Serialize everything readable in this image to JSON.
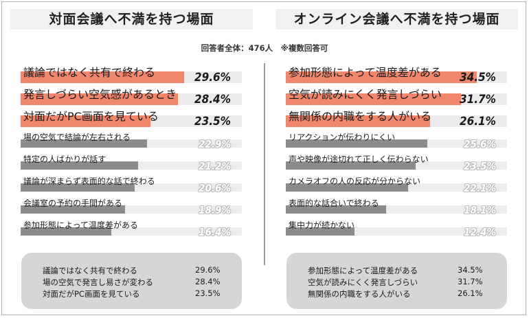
{
  "respondents": "回答者全体：476人　※複数回答可",
  "colors": {
    "highlight": "#f0866b",
    "normal": "#8c8c8c",
    "track": "#ececec",
    "summary_bg": "#d6d6d6"
  },
  "chart_data": [
    {
      "type": "bar",
      "orientation": "horizontal",
      "title": "対面会議へ不満を持つ場面",
      "categories": [
        "議論ではなく共有で終わる",
        "発言しづらい空気感があるとき",
        "対面だがPC画面を見ている",
        "場の空気で結論が左右される",
        "特定の人ばかりが話す",
        "議論が深まらず表面的な話で終わる",
        "会議室の予約の手間がある",
        "参加形態によって温度差がある"
      ],
      "values": [
        29.6,
        28.4,
        23.5,
        22.9,
        21.2,
        20.6,
        18.9,
        16.4
      ],
      "value_labels": [
        "29.6%",
        "28.4%",
        "23.5%",
        "22.9%",
        "21.2%",
        "20.6%",
        "18.9%",
        "16.4%"
      ],
      "highlight_top": 3,
      "xlim": [
        0,
        40
      ]
    },
    {
      "type": "bar",
      "orientation": "horizontal",
      "title": "オンライン会議へ不満を持つ場面",
      "categories": [
        "参加形態によって温度差がある",
        "空気が読みにくく発言しづらい",
        "無関係の内職をする人がいる",
        "リアクションが伝わりにくい",
        "声や映像が途切れて正しく伝わらない",
        "カメラオフの人の反応が分からない",
        "表面的な話合いで終わる",
        "集中力が続かない"
      ],
      "values": [
        34.5,
        31.7,
        26.1,
        25.6,
        23.5,
        22.1,
        18.1,
        12.4
      ],
      "value_labels": [
        "34.5%",
        "31.7%",
        "26.1%",
        "25.6%",
        "23.5%",
        "22.1%",
        "18.1%",
        "12.4%"
      ],
      "highlight_top": 3,
      "xlim": [
        0,
        40
      ]
    }
  ],
  "summaries": [
    {
      "rows": [
        {
          "label": "議論ではなく共有で終わる",
          "value": "29.6%"
        },
        {
          "label": "場の空気で発言し易さが変わる",
          "value": "28.4%"
        },
        {
          "label": "対面だがPC画面を見ている",
          "value": "23.5%"
        }
      ]
    },
    {
      "rows": [
        {
          "label": "参加形態によって温度差がある",
          "value": "34.5%"
        },
        {
          "label": "空気が読みにくく発言しづらい",
          "value": "31.7%"
        },
        {
          "label": "無関係の内職をする人がいる",
          "value": "26.1%"
        }
      ]
    }
  ]
}
